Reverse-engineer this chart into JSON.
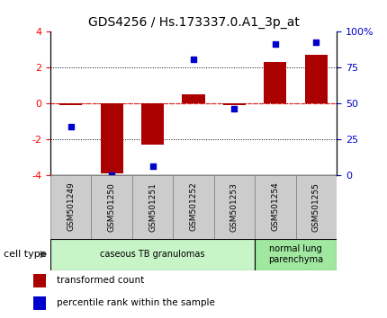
{
  "title": "GDS4256 / Hs.173337.0.A1_3p_at",
  "samples": [
    "GSM501249",
    "GSM501250",
    "GSM501251",
    "GSM501252",
    "GSM501253",
    "GSM501254",
    "GSM501255"
  ],
  "red_values": [
    -0.1,
    -3.9,
    -2.3,
    0.5,
    -0.1,
    2.3,
    2.7
  ],
  "blue_values": [
    -1.3,
    -4.0,
    -3.5,
    2.45,
    -0.3,
    3.3,
    3.4
  ],
  "ylim": [
    -4,
    4
  ],
  "yticks_left": [
    -4,
    -2,
    0,
    2,
    4
  ],
  "cell_types": [
    {
      "label": "caseous TB granulomas",
      "start": 0,
      "end": 5,
      "color": "#c8f5c8"
    },
    {
      "label": "normal lung\nparenchyma",
      "start": 5,
      "end": 7,
      "color": "#a0e8a0"
    }
  ],
  "legend_red": "transformed count",
  "legend_blue": "percentile rank within the sample",
  "cell_type_label": "cell type",
  "bar_color": "#aa0000",
  "dot_color": "#0000cc",
  "bg_color": "#ffffff",
  "right_tick_color": "#0000cc",
  "sample_box_color": "#cccccc",
  "sample_box_edge": "#888888"
}
